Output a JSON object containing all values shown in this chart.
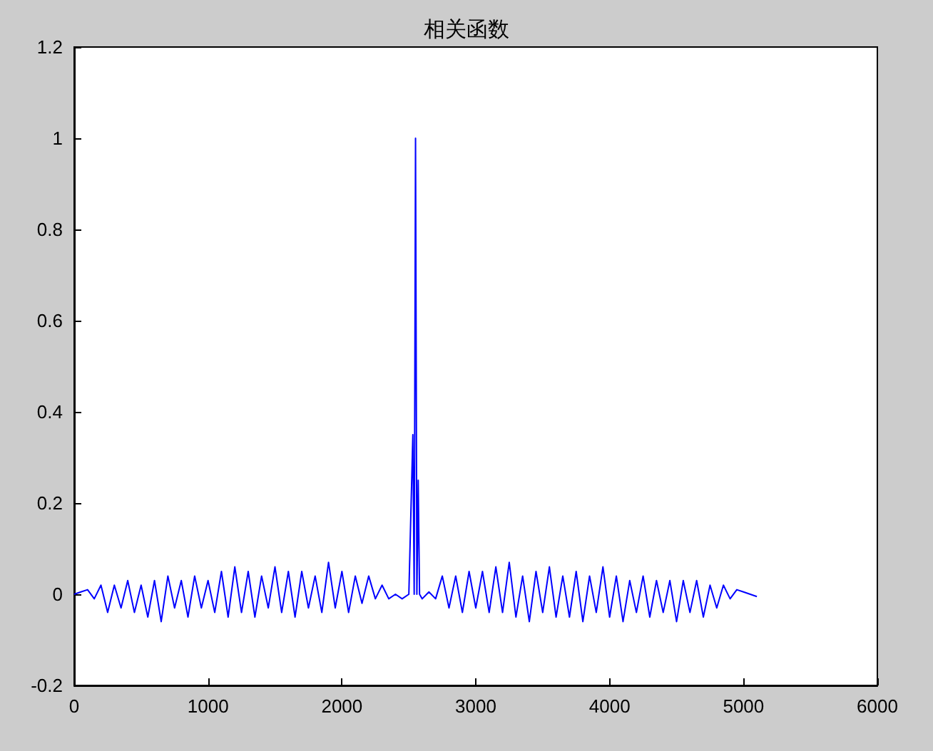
{
  "chart_data": {
    "type": "line",
    "title": "相关函数",
    "color": "#0000ff",
    "marker": "none",
    "grid": false,
    "x": [
      0,
      50,
      100,
      150,
      200,
      250,
      300,
      350,
      400,
      450,
      500,
      550,
      600,
      650,
      700,
      750,
      800,
      850,
      900,
      950,
      1000,
      1050,
      1100,
      1150,
      1200,
      1250,
      1300,
      1350,
      1400,
      1450,
      1500,
      1550,
      1600,
      1650,
      1700,
      1750,
      1800,
      1850,
      1900,
      1950,
      2000,
      2050,
      2100,
      2150,
      2200,
      2250,
      2300,
      2350,
      2400,
      2450,
      2500,
      2530,
      2540,
      2550,
      2560,
      2570,
      2580,
      2600,
      2650,
      2700,
      2750,
      2800,
      2850,
      2900,
      2950,
      3000,
      3050,
      3100,
      3150,
      3200,
      3250,
      3300,
      3350,
      3400,
      3450,
      3500,
      3550,
      3600,
      3650,
      3700,
      3750,
      3800,
      3850,
      3900,
      3950,
      4000,
      4050,
      4100,
      4150,
      4200,
      4250,
      4300,
      4350,
      4400,
      4450,
      4500,
      4550,
      4600,
      4650,
      4700,
      4750,
      4800,
      4850,
      4900,
      4950,
      5000,
      5050,
      5100
    ],
    "values": [
      0,
      0.005,
      0.01,
      -0.01,
      0.02,
      -0.04,
      0.02,
      -0.03,
      0.03,
      -0.04,
      0.02,
      -0.05,
      0.03,
      -0.06,
      0.04,
      -0.03,
      0.03,
      -0.05,
      0.04,
      -0.03,
      0.03,
      -0.04,
      0.05,
      -0.05,
      0.06,
      -0.04,
      0.05,
      -0.05,
      0.04,
      -0.03,
      0.06,
      -0.04,
      0.05,
      -0.05,
      0.05,
      -0.03,
      0.04,
      -0.04,
      0.07,
      -0.03,
      0.05,
      -0.04,
      0.04,
      -0.02,
      0.04,
      -0.01,
      0.02,
      -0.01,
      0,
      -0.01,
      0,
      0.35,
      0,
      1,
      0,
      0.25,
      0,
      -0.01,
      0.005,
      -0.01,
      0.04,
      -0.03,
      0.04,
      -0.04,
      0.05,
      -0.03,
      0.05,
      -0.04,
      0.06,
      -0.04,
      0.07,
      -0.05,
      0.04,
      -0.06,
      0.05,
      -0.04,
      0.06,
      -0.05,
      0.04,
      -0.05,
      0.05,
      -0.06,
      0.04,
      -0.04,
      0.06,
      -0.05,
      0.04,
      -0.06,
      0.03,
      -0.04,
      0.04,
      -0.05,
      0.03,
      -0.04,
      0.03,
      -0.06,
      0.03,
      -0.04,
      0.03,
      -0.05,
      0.02,
      -0.03,
      0.02,
      -0.01,
      0.01,
      0.005,
      0,
      -0.005
    ],
    "xlim": [
      0,
      6000
    ],
    "xticks": [
      0,
      1000,
      2000,
      3000,
      4000,
      5000,
      6000
    ],
    "ylim": [
      -0.2,
      1.2
    ],
    "yticks": [
      -0.2,
      0,
      0.2,
      0.4,
      0.6,
      0.8,
      1,
      1.2
    ]
  }
}
